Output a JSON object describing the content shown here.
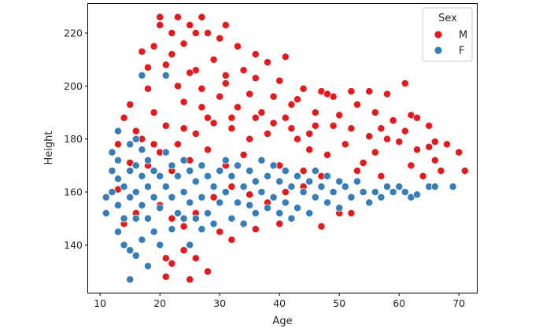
{
  "chart_data": {
    "type": "scatter",
    "xlabel": "Age",
    "ylabel": "Height",
    "xlim": [
      8,
      73
    ],
    "ylim": [
      122,
      231
    ],
    "x_ticks": [
      10,
      20,
      30,
      40,
      50,
      60,
      70
    ],
    "y_ticks": [
      140,
      160,
      180,
      200,
      220
    ],
    "grid": false,
    "legend": {
      "title": "Sex",
      "placement": "top-right"
    },
    "series": [
      {
        "name": "M",
        "color": "#e41a1c",
        "points": [
          [
            20,
            226
          ],
          [
            23,
            226
          ],
          [
            27,
            226
          ],
          [
            20,
            223
          ],
          [
            25,
            223
          ],
          [
            31,
            223
          ],
          [
            17,
            213
          ],
          [
            18,
            207
          ],
          [
            18,
            199
          ],
          [
            22,
            220
          ],
          [
            26,
            220
          ],
          [
            28,
            220
          ],
          [
            19,
            215
          ],
          [
            24,
            216
          ],
          [
            30,
            218
          ],
          [
            33,
            215
          ],
          [
            36,
            212
          ],
          [
            38,
            209
          ],
          [
            41,
            211
          ],
          [
            29,
            210
          ],
          [
            22,
            212
          ],
          [
            21,
            208
          ],
          [
            26,
            206
          ],
          [
            34,
            206
          ],
          [
            40,
            202
          ],
          [
            44,
            199
          ],
          [
            47,
            198
          ],
          [
            49,
            196
          ],
          [
            52,
            198
          ],
          [
            55,
            198
          ],
          [
            58,
            197
          ],
          [
            61,
            201
          ],
          [
            48,
            197
          ],
          [
            15,
            193
          ],
          [
            14,
            188
          ],
          [
            13,
            178
          ],
          [
            16,
            183
          ],
          [
            15,
            171
          ],
          [
            13,
            161
          ],
          [
            14,
            148
          ],
          [
            16,
            152
          ],
          [
            21,
            185
          ],
          [
            24,
            194
          ],
          [
            27,
            199
          ],
          [
            31,
            201
          ],
          [
            35,
            197
          ],
          [
            39,
            196
          ],
          [
            42,
            193
          ],
          [
            46,
            190
          ],
          [
            50,
            189
          ],
          [
            53,
            193
          ],
          [
            56,
            190
          ],
          [
            59,
            187
          ],
          [
            62,
            189
          ],
          [
            63,
            188
          ],
          [
            65,
            185
          ],
          [
            66,
            179
          ],
          [
            68,
            178
          ],
          [
            70,
            175
          ],
          [
            71,
            168
          ],
          [
            67,
            168
          ],
          [
            65,
            177
          ],
          [
            61,
            183
          ],
          [
            57,
            184
          ],
          [
            60,
            179
          ],
          [
            63,
            176
          ],
          [
            56,
            175
          ],
          [
            54,
            171
          ],
          [
            51,
            178
          ],
          [
            48,
            174
          ],
          [
            45,
            176
          ],
          [
            43,
            180
          ],
          [
            38,
            182
          ],
          [
            35,
            180
          ],
          [
            32,
            188
          ],
          [
            29,
            186
          ],
          [
            26,
            182
          ],
          [
            23,
            178
          ],
          [
            20,
            175
          ],
          [
            18,
            170
          ],
          [
            22,
            168
          ],
          [
            25,
            172
          ],
          [
            28,
            176
          ],
          [
            31,
            170
          ],
          [
            34,
            174
          ],
          [
            37,
            172
          ],
          [
            40,
            170
          ],
          [
            44,
            168
          ],
          [
            47,
            166
          ],
          [
            50,
            164
          ],
          [
            53,
            168
          ],
          [
            57,
            166
          ],
          [
            62,
            170
          ],
          [
            64,
            166
          ],
          [
            66,
            172
          ],
          [
            19,
            190
          ],
          [
            23,
            200
          ],
          [
            27,
            192
          ],
          [
            30,
            196
          ],
          [
            33,
            192
          ],
          [
            36,
            188
          ],
          [
            39,
            186
          ],
          [
            42,
            184
          ],
          [
            45,
            182
          ],
          [
            49,
            185
          ],
          [
            52,
            184
          ],
          [
            55,
            181
          ],
          [
            58,
            180
          ],
          [
            20,
            155
          ],
          [
            22,
            150
          ],
          [
            24,
            147
          ],
          [
            26,
            152
          ],
          [
            29,
            158
          ],
          [
            32,
            162
          ],
          [
            35,
            159
          ],
          [
            38,
            156
          ],
          [
            41,
            160
          ],
          [
            44,
            162
          ],
          [
            47,
            147
          ],
          [
            50,
            152
          ],
          [
            52,
            152
          ],
          [
            21,
            135
          ],
          [
            22,
            133
          ],
          [
            24,
            138
          ],
          [
            25,
            127
          ],
          [
            26,
            135
          ],
          [
            28,
            130
          ],
          [
            21,
            128
          ],
          [
            30,
            145
          ],
          [
            32,
            142
          ],
          [
            36,
            146
          ],
          [
            40,
            148
          ],
          [
            17,
            180
          ],
          [
            19,
            178
          ],
          [
            24,
            184
          ],
          [
            28,
            188
          ],
          [
            32,
            184
          ],
          [
            37,
            190
          ],
          [
            41,
            188
          ],
          [
            46,
            185
          ],
          [
            25,
            205
          ],
          [
            31,
            204
          ],
          [
            36,
            203
          ],
          [
            43,
            195
          ]
        ]
      },
      {
        "name": "F",
        "color": "#377eb8",
        "points": [
          [
            11,
            158
          ],
          [
            11,
            152
          ],
          [
            12,
            160
          ],
          [
            12,
            168
          ],
          [
            12,
            175
          ],
          [
            13,
            183
          ],
          [
            13,
            172
          ],
          [
            13,
            165
          ],
          [
            13,
            155
          ],
          [
            13,
            145
          ],
          [
            14,
            162
          ],
          [
            14,
            150
          ],
          [
            14,
            140
          ],
          [
            15,
            178
          ],
          [
            15,
            168
          ],
          [
            15,
            158
          ],
          [
            15,
            138
          ],
          [
            15,
            127
          ],
          [
            16,
            180
          ],
          [
            16,
            170
          ],
          [
            16,
            160
          ],
          [
            16,
            150
          ],
          [
            16,
            136
          ],
          [
            17,
            204
          ],
          [
            17,
            176
          ],
          [
            17,
            166
          ],
          [
            17,
            155
          ],
          [
            17,
            142
          ],
          [
            18,
            172
          ],
          [
            18,
            162
          ],
          [
            18,
            150
          ],
          [
            18,
            132
          ],
          [
            19,
            168
          ],
          [
            19,
            158
          ],
          [
            19,
            145
          ],
          [
            20,
            166
          ],
          [
            20,
            154
          ],
          [
            20,
            140
          ],
          [
            21,
            204
          ],
          [
            21,
            175
          ],
          [
            21,
            162
          ],
          [
            22,
            170
          ],
          [
            22,
            158
          ],
          [
            22,
            146
          ],
          [
            23,
            166
          ],
          [
            23,
            152
          ],
          [
            24,
            172
          ],
          [
            24,
            160
          ],
          [
            24,
            150
          ],
          [
            25,
            168
          ],
          [
            25,
            156
          ],
          [
            25,
            140
          ],
          [
            26,
            164
          ],
          [
            26,
            150
          ],
          [
            27,
            170
          ],
          [
            27,
            158
          ],
          [
            27,
            146
          ],
          [
            28,
            166
          ],
          [
            28,
            152
          ],
          [
            29,
            162
          ],
          [
            29,
            148
          ],
          [
            30,
            168
          ],
          [
            30,
            156
          ],
          [
            31,
            172
          ],
          [
            31,
            160
          ],
          [
            32,
            166
          ],
          [
            32,
            150
          ],
          [
            33,
            170
          ],
          [
            33,
            156
          ],
          [
            34,
            162
          ],
          [
            34,
            148
          ],
          [
            35,
            168
          ],
          [
            35,
            155
          ],
          [
            36,
            164
          ],
          [
            36,
            152
          ],
          [
            37,
            172
          ],
          [
            37,
            160
          ],
          [
            38,
            166
          ],
          [
            38,
            154
          ],
          [
            39,
            170
          ],
          [
            39,
            158
          ],
          [
            40,
            164
          ],
          [
            40,
            152
          ],
          [
            41,
            168
          ],
          [
            41,
            156
          ],
          [
            42,
            162
          ],
          [
            42,
            150
          ],
          [
            43,
            166
          ],
          [
            43,
            154
          ],
          [
            44,
            160
          ],
          [
            45,
            164
          ],
          [
            45,
            152
          ],
          [
            46,
            168
          ],
          [
            46,
            158
          ],
          [
            47,
            162
          ],
          [
            48,
            166
          ],
          [
            48,
            156
          ],
          [
            49,
            160
          ],
          [
            50,
            164
          ],
          [
            50,
            154
          ],
          [
            51,
            162
          ],
          [
            52,
            158
          ],
          [
            53,
            164
          ],
          [
            54,
            160
          ],
          [
            55,
            156
          ],
          [
            56,
            160
          ],
          [
            57,
            158
          ],
          [
            58,
            162
          ],
          [
            59,
            160
          ],
          [
            60,
            162
          ],
          [
            61,
            160
          ],
          [
            62,
            158
          ],
          [
            63,
            159
          ],
          [
            65,
            162
          ],
          [
            66,
            162
          ],
          [
            69,
            162
          ]
        ]
      }
    ]
  }
}
